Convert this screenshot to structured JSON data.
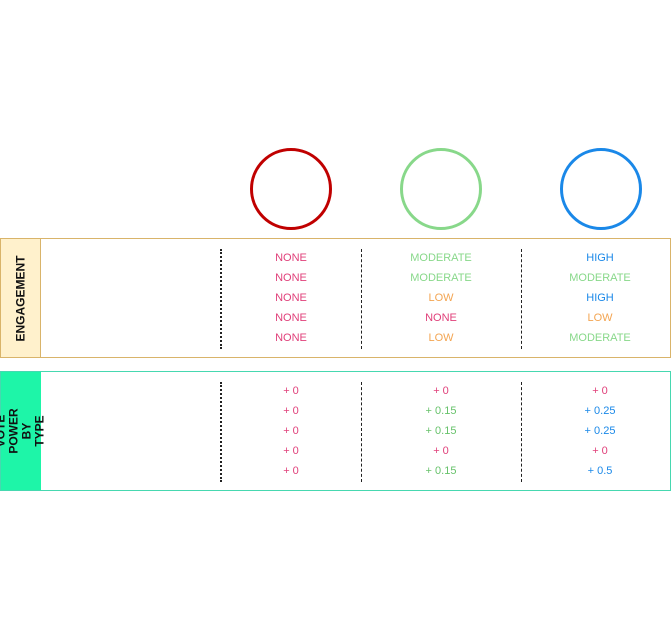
{
  "colors": {
    "red": "#c00000",
    "green": "#88d88a",
    "blue": "#1a88e8",
    "pink": "#e0407a",
    "orange": "#f3a552"
  },
  "circles": [
    {
      "color": "#c00000"
    },
    {
      "color": "#88d88a"
    },
    {
      "color": "#1a88e8"
    }
  ],
  "engagement": {
    "label": "ENGAGEMENT",
    "columns": [
      [
        {
          "text": "NONE",
          "color": "#e0407a"
        },
        {
          "text": "NONE",
          "color": "#e0407a"
        },
        {
          "text": "NONE",
          "color": "#e0407a"
        },
        {
          "text": "NONE",
          "color": "#e0407a"
        },
        {
          "text": "NONE",
          "color": "#e0407a"
        }
      ],
      [
        {
          "text": "MODERATE",
          "color": "#88d88a"
        },
        {
          "text": "MODERATE",
          "color": "#88d88a"
        },
        {
          "text": "LOW",
          "color": "#f3a552"
        },
        {
          "text": "NONE",
          "color": "#e0407a"
        },
        {
          "text": "LOW",
          "color": "#f3a552"
        }
      ],
      [
        {
          "text": "HIGH",
          "color": "#1a88e8"
        },
        {
          "text": "MODERATE",
          "color": "#88d88a"
        },
        {
          "text": "HIGH",
          "color": "#1a88e8"
        },
        {
          "text": "LOW",
          "color": "#f3a552"
        },
        {
          "text": "MODERATE",
          "color": "#88d88a"
        }
      ]
    ]
  },
  "vote_power": {
    "label": "VOTE POWER BY TYPE",
    "columns": [
      [
        {
          "text": "+ 0",
          "color": "#e0407a"
        },
        {
          "text": "+ 0",
          "color": "#e0407a"
        },
        {
          "text": "+ 0",
          "color": "#e0407a"
        },
        {
          "text": "+ 0",
          "color": "#e0407a"
        },
        {
          "text": "+ 0",
          "color": "#e0407a"
        }
      ],
      [
        {
          "text": "+ 0",
          "color": "#e0407a"
        },
        {
          "text": "+ 0.15",
          "color": "#66c26a"
        },
        {
          "text": "+ 0.15",
          "color": "#66c26a"
        },
        {
          "text": "+ 0",
          "color": "#e0407a"
        },
        {
          "text": "+ 0.15",
          "color": "#66c26a"
        }
      ],
      [
        {
          "text": "+ 0",
          "color": "#e0407a"
        },
        {
          "text": "+ 0.25",
          "color": "#1a88e8"
        },
        {
          "text": "+ 0.25",
          "color": "#1a88e8"
        },
        {
          "text": "+ 0",
          "color": "#e0407a"
        },
        {
          "text": "+ 0.5",
          "color": "#1a88e8"
        }
      ]
    ]
  }
}
